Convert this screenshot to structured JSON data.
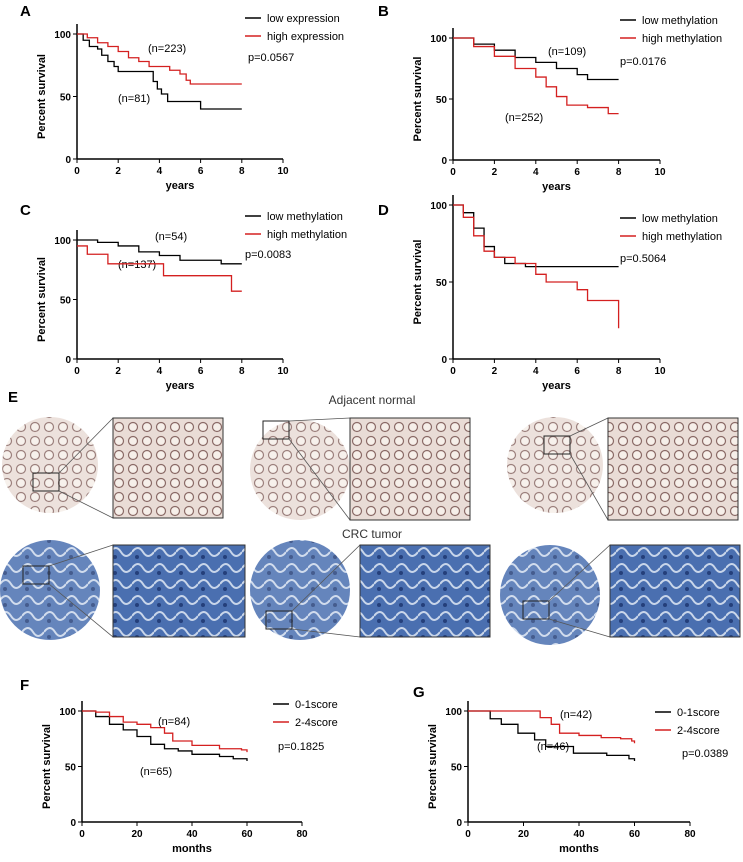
{
  "colors": {
    "low": "#000000",
    "high": "#d42020"
  },
  "section_e": {
    "label": "E",
    "row1_title": "Adjacent normal",
    "row2_title": "CRC tumor"
  },
  "chart_data": [
    {
      "panel": "A",
      "type": "line",
      "subtype": "kaplan-meier",
      "xlabel": "years",
      "ylabel": "Percent survival",
      "xlim": [
        0,
        10
      ],
      "ylim": [
        0,
        100
      ],
      "xticks": [
        "0",
        "2",
        "4",
        "6",
        "8",
        "10"
      ],
      "yticks": [
        "0",
        "50",
        "100"
      ],
      "pvalue": "p=0.0567",
      "legend": "top-right",
      "series": [
        {
          "name": "low expression",
          "n_label": "(n=81)",
          "color": "#000000",
          "points": [
            [
              0,
              100
            ],
            [
              0.3,
              95
            ],
            [
              0.6,
              90
            ],
            [
              1,
              88
            ],
            [
              1.2,
              83
            ],
            [
              1.5,
              78
            ],
            [
              1.8,
              74
            ],
            [
              2,
              70
            ],
            [
              3.5,
              70
            ],
            [
              3.7,
              62
            ],
            [
              3.9,
              56
            ],
            [
              4.1,
              52
            ],
            [
              4.4,
              46
            ],
            [
              6,
              46
            ],
            [
              6,
              40
            ],
            [
              8,
              40
            ]
          ]
        },
        {
          "name": "high expression",
          "n_label": "(n=223)",
          "color": "#d42020",
          "points": [
            [
              0,
              100
            ],
            [
              0.5,
              97
            ],
            [
              1,
              93
            ],
            [
              1.5,
              90
            ],
            [
              2,
              86
            ],
            [
              2.5,
              81
            ],
            [
              3,
              78
            ],
            [
              3.5,
              74
            ],
            [
              4.5,
              71
            ],
            [
              5,
              68
            ],
            [
              5.3,
              63
            ],
            [
              5.5,
              60
            ],
            [
              8,
              60
            ]
          ]
        }
      ]
    },
    {
      "panel": "B",
      "type": "line",
      "subtype": "kaplan-meier",
      "xlabel": "years",
      "ylabel": "Percent survival",
      "xlim": [
        0,
        10
      ],
      "ylim": [
        0,
        100
      ],
      "xticks": [
        "0",
        "2",
        "4",
        "6",
        "8",
        "10"
      ],
      "yticks": [
        "0",
        "50",
        "100"
      ],
      "pvalue": "p=0.0176",
      "legend": "top-right",
      "series": [
        {
          "name": "low methylation",
          "n_label": "(n=252)",
          "color": "#000000",
          "points": [
            [
              0,
              100
            ],
            [
              1,
              95
            ],
            [
              2,
              90
            ],
            [
              3,
              84
            ],
            [
              4,
              80
            ],
            [
              5,
              75
            ],
            [
              6,
              70
            ],
            [
              6.5,
              66
            ],
            [
              8,
              66
            ]
          ]
        },
        {
          "name": "high methylation",
          "n_label": "(n=109)",
          "color": "#d42020",
          "points": [
            [
              0,
              100
            ],
            [
              1,
              93
            ],
            [
              2,
              85
            ],
            [
              3,
              75
            ],
            [
              4,
              68
            ],
            [
              4.5,
              60
            ],
            [
              5,
              52
            ],
            [
              5.5,
              45
            ],
            [
              6.5,
              43
            ],
            [
              7.5,
              38
            ],
            [
              8,
              38
            ]
          ]
        }
      ]
    },
    {
      "panel": "C",
      "type": "line",
      "subtype": "kaplan-meier",
      "xlabel": "years",
      "ylabel": "Percent survival",
      "xlim": [
        0,
        10
      ],
      "ylim": [
        0,
        100
      ],
      "xticks": [
        "0",
        "2",
        "4",
        "6",
        "8",
        "10"
      ],
      "yticks": [
        "0",
        "50",
        "100"
      ],
      "pvalue": "p=0.0083",
      "legend": "top-right",
      "series": [
        {
          "name": "low methylation",
          "n_label": "(n=137)",
          "color": "#000000",
          "points": [
            [
              0,
              100
            ],
            [
              1,
              98
            ],
            [
              2,
              95
            ],
            [
              3,
              90
            ],
            [
              4,
              87
            ],
            [
              5,
              83
            ],
            [
              7,
              80
            ],
            [
              8,
              80
            ]
          ]
        },
        {
          "name": "high methylation",
          "n_label": "(n=54)",
          "color": "#d42020",
          "points": [
            [
              0,
              95
            ],
            [
              0.5,
              88
            ],
            [
              1.5,
              80
            ],
            [
              4,
              80
            ],
            [
              4.2,
              70
            ],
            [
              7.5,
              70
            ],
            [
              7.5,
              57
            ],
            [
              8,
              57
            ]
          ]
        }
      ]
    },
    {
      "panel": "D",
      "type": "line",
      "subtype": "kaplan-meier",
      "xlabel": "years",
      "ylabel": "Percent survival",
      "xlim": [
        0,
        10
      ],
      "ylim": [
        0,
        100
      ],
      "xticks": [
        "0",
        "2",
        "4",
        "6",
        "8",
        "10"
      ],
      "yticks": [
        "0",
        "50",
        "100"
      ],
      "pvalue": "p=0.5064",
      "legend": "top-right",
      "series": [
        {
          "name": "low methylation",
          "n_label": "",
          "color": "#000000",
          "points": [
            [
              0,
              100
            ],
            [
              0.5,
              95
            ],
            [
              1,
              85
            ],
            [
              1.5,
              73
            ],
            [
              2,
              66
            ],
            [
              2.5,
              62
            ],
            [
              3.5,
              60
            ],
            [
              8,
              60
            ]
          ]
        },
        {
          "name": "high methylation",
          "n_label": "",
          "color": "#d42020",
          "points": [
            [
              0,
              100
            ],
            [
              0.5,
              92
            ],
            [
              1,
              80
            ],
            [
              1.5,
              70
            ],
            [
              2,
              66
            ],
            [
              3,
              62
            ],
            [
              4,
              55
            ],
            [
              4.5,
              50
            ],
            [
              6,
              45
            ],
            [
              6.5,
              38
            ],
            [
              7.8,
              38
            ],
            [
              8,
              20
            ]
          ]
        }
      ]
    },
    {
      "panel": "F",
      "type": "line",
      "subtype": "kaplan-meier",
      "xlabel": "months",
      "ylabel": "Percent survival",
      "xlim": [
        0,
        80
      ],
      "ylim": [
        0,
        100
      ],
      "xticks": [
        "0",
        "20",
        "40",
        "60",
        "80"
      ],
      "yticks": [
        "0",
        "50",
        "100"
      ],
      "pvalue": "p=0.1825",
      "legend": "top-right",
      "series": [
        {
          "name": "0-1score",
          "n_label": "(n=65)",
          "color": "#000000",
          "points": [
            [
              0,
              100
            ],
            [
              5,
              95
            ],
            [
              10,
              88
            ],
            [
              15,
              83
            ],
            [
              20,
              77
            ],
            [
              25,
              70
            ],
            [
              30,
              66
            ],
            [
              35,
              64
            ],
            [
              40,
              61
            ],
            [
              50,
              59
            ],
            [
              55,
              57
            ],
            [
              60,
              55
            ]
          ]
        },
        {
          "name": "2-4score",
          "n_label": "(n=84)",
          "color": "#d42020",
          "points": [
            [
              0,
              100
            ],
            [
              5,
              99
            ],
            [
              10,
              95
            ],
            [
              15,
              90
            ],
            [
              20,
              88
            ],
            [
              25,
              85
            ],
            [
              30,
              80
            ],
            [
              33,
              73
            ],
            [
              40,
              69
            ],
            [
              50,
              66
            ],
            [
              58,
              65
            ],
            [
              60,
              63
            ]
          ]
        }
      ]
    },
    {
      "panel": "G",
      "type": "line",
      "subtype": "kaplan-meier",
      "xlabel": "months",
      "ylabel": "Percent survival",
      "xlim": [
        0,
        80
      ],
      "ylim": [
        0,
        100
      ],
      "xticks": [
        "0",
        "20",
        "40",
        "60",
        "80"
      ],
      "yticks": [
        "0",
        "50",
        "100"
      ],
      "pvalue": "p=0.0389",
      "legend": "top-right",
      "series": [
        {
          "name": "0-1score",
          "n_label": "(n=46)",
          "color": "#000000",
          "points": [
            [
              0,
              100
            ],
            [
              5,
              100
            ],
            [
              8,
              93
            ],
            [
              12,
              88
            ],
            [
              18,
              80
            ],
            [
              24,
              74
            ],
            [
              28,
              68
            ],
            [
              38,
              62
            ],
            [
              50,
              60
            ],
            [
              58,
              57
            ],
            [
              60,
              55
            ]
          ]
        },
        {
          "name": "2-4score",
          "n_label": "(n=42)",
          "color": "#d42020",
          "points": [
            [
              0,
              100
            ],
            [
              23,
              100
            ],
            [
              26,
              94
            ],
            [
              30,
              88
            ],
            [
              33,
              80
            ],
            [
              40,
              78
            ],
            [
              48,
              76
            ],
            [
              55,
              75
            ],
            [
              59,
              73
            ],
            [
              60,
              71
            ]
          ]
        }
      ]
    }
  ]
}
